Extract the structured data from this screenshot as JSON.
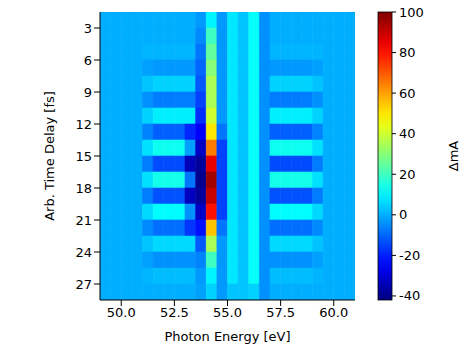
{
  "chart_data": {
    "type": "heatmap",
    "xlabel": "Photon Energy [eV]",
    "ylabel": "Arb. Time Delay [fs]",
    "xlim": [
      49,
      61
    ],
    "xticks": [
      {
        "value": 50,
        "label": "50.0"
      },
      {
        "value": 52.5,
        "label": "52.5"
      },
      {
        "value": 55,
        "label": "55.0"
      },
      {
        "value": 57.5,
        "label": "57.5"
      },
      {
        "value": 60,
        "label": "60.0"
      }
    ],
    "ylim": [
      1.5,
      28.5
    ],
    "yticks": [
      3,
      6,
      9,
      12,
      15,
      18,
      21,
      24,
      27
    ],
    "x_edges": [
      49,
      49.5,
      50,
      50.5,
      51,
      51.5,
      52,
      52.5,
      53,
      53.5,
      54,
      54.5,
      55,
      55.5,
      56,
      56.5,
      57,
      57.5,
      58,
      58.5,
      59,
      59.5,
      60,
      60.5,
      61
    ],
    "y_edges": [
      1.5,
      3,
      4.5,
      6,
      7.5,
      9,
      10.5,
      12,
      13.5,
      15,
      16.5,
      18,
      19.5,
      21,
      22.5,
      24,
      25.5,
      27,
      28.5
    ],
    "cells": [
      [
        0,
        0,
        0,
        0,
        0,
        0,
        0,
        0,
        0,
        -3,
        10,
        -3,
        8,
        3,
        12,
        -4,
        0,
        0,
        0,
        0,
        0,
        0,
        0,
        0
      ],
      [
        0,
        0,
        0,
        0,
        0,
        0,
        0,
        0,
        0,
        -5,
        20,
        -3,
        8,
        3,
        12,
        -4,
        0,
        0,
        0,
        0,
        0,
        0,
        0,
        0
      ],
      [
        0,
        0,
        0,
        0,
        1,
        1,
        1,
        1,
        1,
        -8,
        25,
        -3,
        8,
        3,
        12,
        -4,
        1,
        1,
        1,
        1,
        1,
        0,
        0,
        0
      ],
      [
        0,
        0,
        0,
        0,
        -2,
        -3,
        -3,
        -3,
        -3,
        -10,
        30,
        -3,
        8,
        3,
        12,
        -4,
        -3,
        -3,
        -3,
        -3,
        -2,
        0,
        0,
        0
      ],
      [
        0,
        0,
        0,
        0,
        3,
        5,
        5,
        5,
        5,
        -12,
        35,
        -3,
        8,
        3,
        12,
        -4,
        5,
        5,
        5,
        5,
        3,
        0,
        0,
        0
      ],
      [
        0,
        0,
        0,
        0,
        -4,
        -7,
        -7,
        -7,
        -7,
        -15,
        35,
        -3,
        8,
        3,
        12,
        -4,
        -7,
        -7,
        -7,
        -7,
        -4,
        0,
        0,
        0
      ],
      [
        0,
        0,
        0,
        0,
        5,
        9,
        9,
        9,
        9,
        -18,
        40,
        -3,
        8,
        3,
        12,
        -4,
        9,
        9,
        9,
        9,
        5,
        0,
        0,
        0
      ],
      [
        0,
        0,
        0,
        0,
        -6,
        -11,
        -11,
        -11,
        -19,
        -25,
        50,
        -8,
        8,
        3,
        12,
        -4,
        -11,
        -11,
        -11,
        -11,
        -6,
        0,
        0,
        0
      ],
      [
        0,
        0,
        0,
        0,
        7,
        13,
        13,
        13,
        -2,
        -32,
        65,
        -15,
        8,
        3,
        12,
        -4,
        13,
        13,
        13,
        13,
        7,
        0,
        0,
        0
      ],
      [
        0,
        0,
        0,
        0,
        -7,
        -14,
        -14,
        -14,
        -34,
        -38,
        85,
        -15,
        8,
        3,
        12,
        -4,
        -14,
        -14,
        -14,
        -14,
        -7,
        0,
        0,
        0
      ],
      [
        0,
        0,
        0,
        0,
        7,
        14,
        14,
        14,
        -8,
        -40,
        95,
        -15,
        8,
        3,
        12,
        -4,
        14,
        14,
        14,
        14,
        7,
        0,
        0,
        0
      ],
      [
        0,
        0,
        0,
        0,
        -7,
        -13,
        -13,
        -13,
        -33,
        -38,
        90,
        -15,
        8,
        3,
        12,
        -4,
        -13,
        -13,
        -13,
        -13,
        -7,
        0,
        0,
        0
      ],
      [
        0,
        0,
        0,
        0,
        6,
        11,
        11,
        11,
        -4,
        -32,
        80,
        -15,
        8,
        3,
        12,
        -4,
        11,
        11,
        11,
        11,
        6,
        0,
        0,
        0
      ],
      [
        0,
        0,
        0,
        0,
        -5,
        -9,
        -9,
        -9,
        -17,
        -22,
        55,
        -8,
        8,
        3,
        12,
        -4,
        -9,
        -9,
        -9,
        -9,
        -5,
        0,
        0,
        0
      ],
      [
        0,
        0,
        0,
        0,
        3,
        6,
        6,
        6,
        6,
        -12,
        35,
        -3,
        8,
        3,
        12,
        -4,
        6,
        6,
        6,
        6,
        3,
        0,
        0,
        0
      ],
      [
        0,
        0,
        0,
        0,
        -2,
        -4,
        -4,
        -4,
        -4,
        -6,
        20,
        -3,
        8,
        3,
        12,
        -4,
        -4,
        -4,
        -4,
        -4,
        -2,
        0,
        0,
        0
      ],
      [
        0,
        0,
        0,
        0,
        1,
        2,
        2,
        2,
        2,
        -3,
        10,
        -3,
        8,
        3,
        12,
        -4,
        2,
        2,
        2,
        2,
        1,
        0,
        0,
        0
      ],
      [
        0,
        0,
        0,
        0,
        0,
        0,
        0,
        0,
        0,
        -2,
        5,
        -3,
        3,
        3,
        5,
        -4,
        0,
        0,
        0,
        0,
        0,
        0,
        0,
        0
      ]
    ],
    "colorbar": {
      "range": [
        -42,
        100
      ],
      "ticks": [
        -40,
        -20,
        0,
        20,
        40,
        60,
        80,
        100
      ],
      "label": "ΔmA"
    }
  }
}
